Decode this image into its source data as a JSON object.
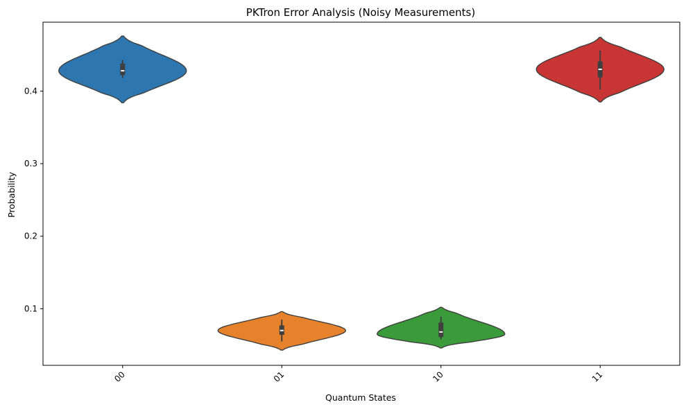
{
  "chart_data": {
    "type": "violin",
    "title": "PKTron Error Analysis (Noisy Measurements)",
    "xlabel": "Quantum States",
    "ylabel": "Probability",
    "categories": [
      "00",
      "01",
      "10",
      "11"
    ],
    "ylim": [
      0.022,
      0.495
    ],
    "yticks": [
      0.1,
      0.2,
      0.3,
      0.4
    ],
    "ytick_labels": [
      "0.1",
      "0.2",
      "0.3",
      "0.4"
    ],
    "xtick_rotation": 45,
    "grid": false,
    "series": [
      {
        "category": "00",
        "color": "#2e76b0",
        "min": 0.384,
        "max": 0.476,
        "q1": 0.422,
        "median": 0.428,
        "q3": 0.438,
        "whisker_low": 0.418,
        "whisker_high": 0.443,
        "peak": 0.428
      },
      {
        "category": "01",
        "color": "#e5822b",
        "min": 0.043,
        "max": 0.096,
        "q1": 0.064,
        "median": 0.07,
        "q3": 0.077,
        "whisker_low": 0.055,
        "whisker_high": 0.085,
        "peak": 0.07
      },
      {
        "category": "10",
        "color": "#3b9a3a",
        "min": 0.046,
        "max": 0.102,
        "q1": 0.061,
        "median": 0.068,
        "q3": 0.081,
        "whisker_low": 0.058,
        "whisker_high": 0.089,
        "peak": 0.065
      },
      {
        "category": "11",
        "color": "#c83535",
        "min": 0.385,
        "max": 0.474,
        "q1": 0.419,
        "median": 0.43,
        "q3": 0.441,
        "whisker_low": 0.402,
        "whisker_high": 0.456,
        "peak": 0.43
      }
    ]
  }
}
